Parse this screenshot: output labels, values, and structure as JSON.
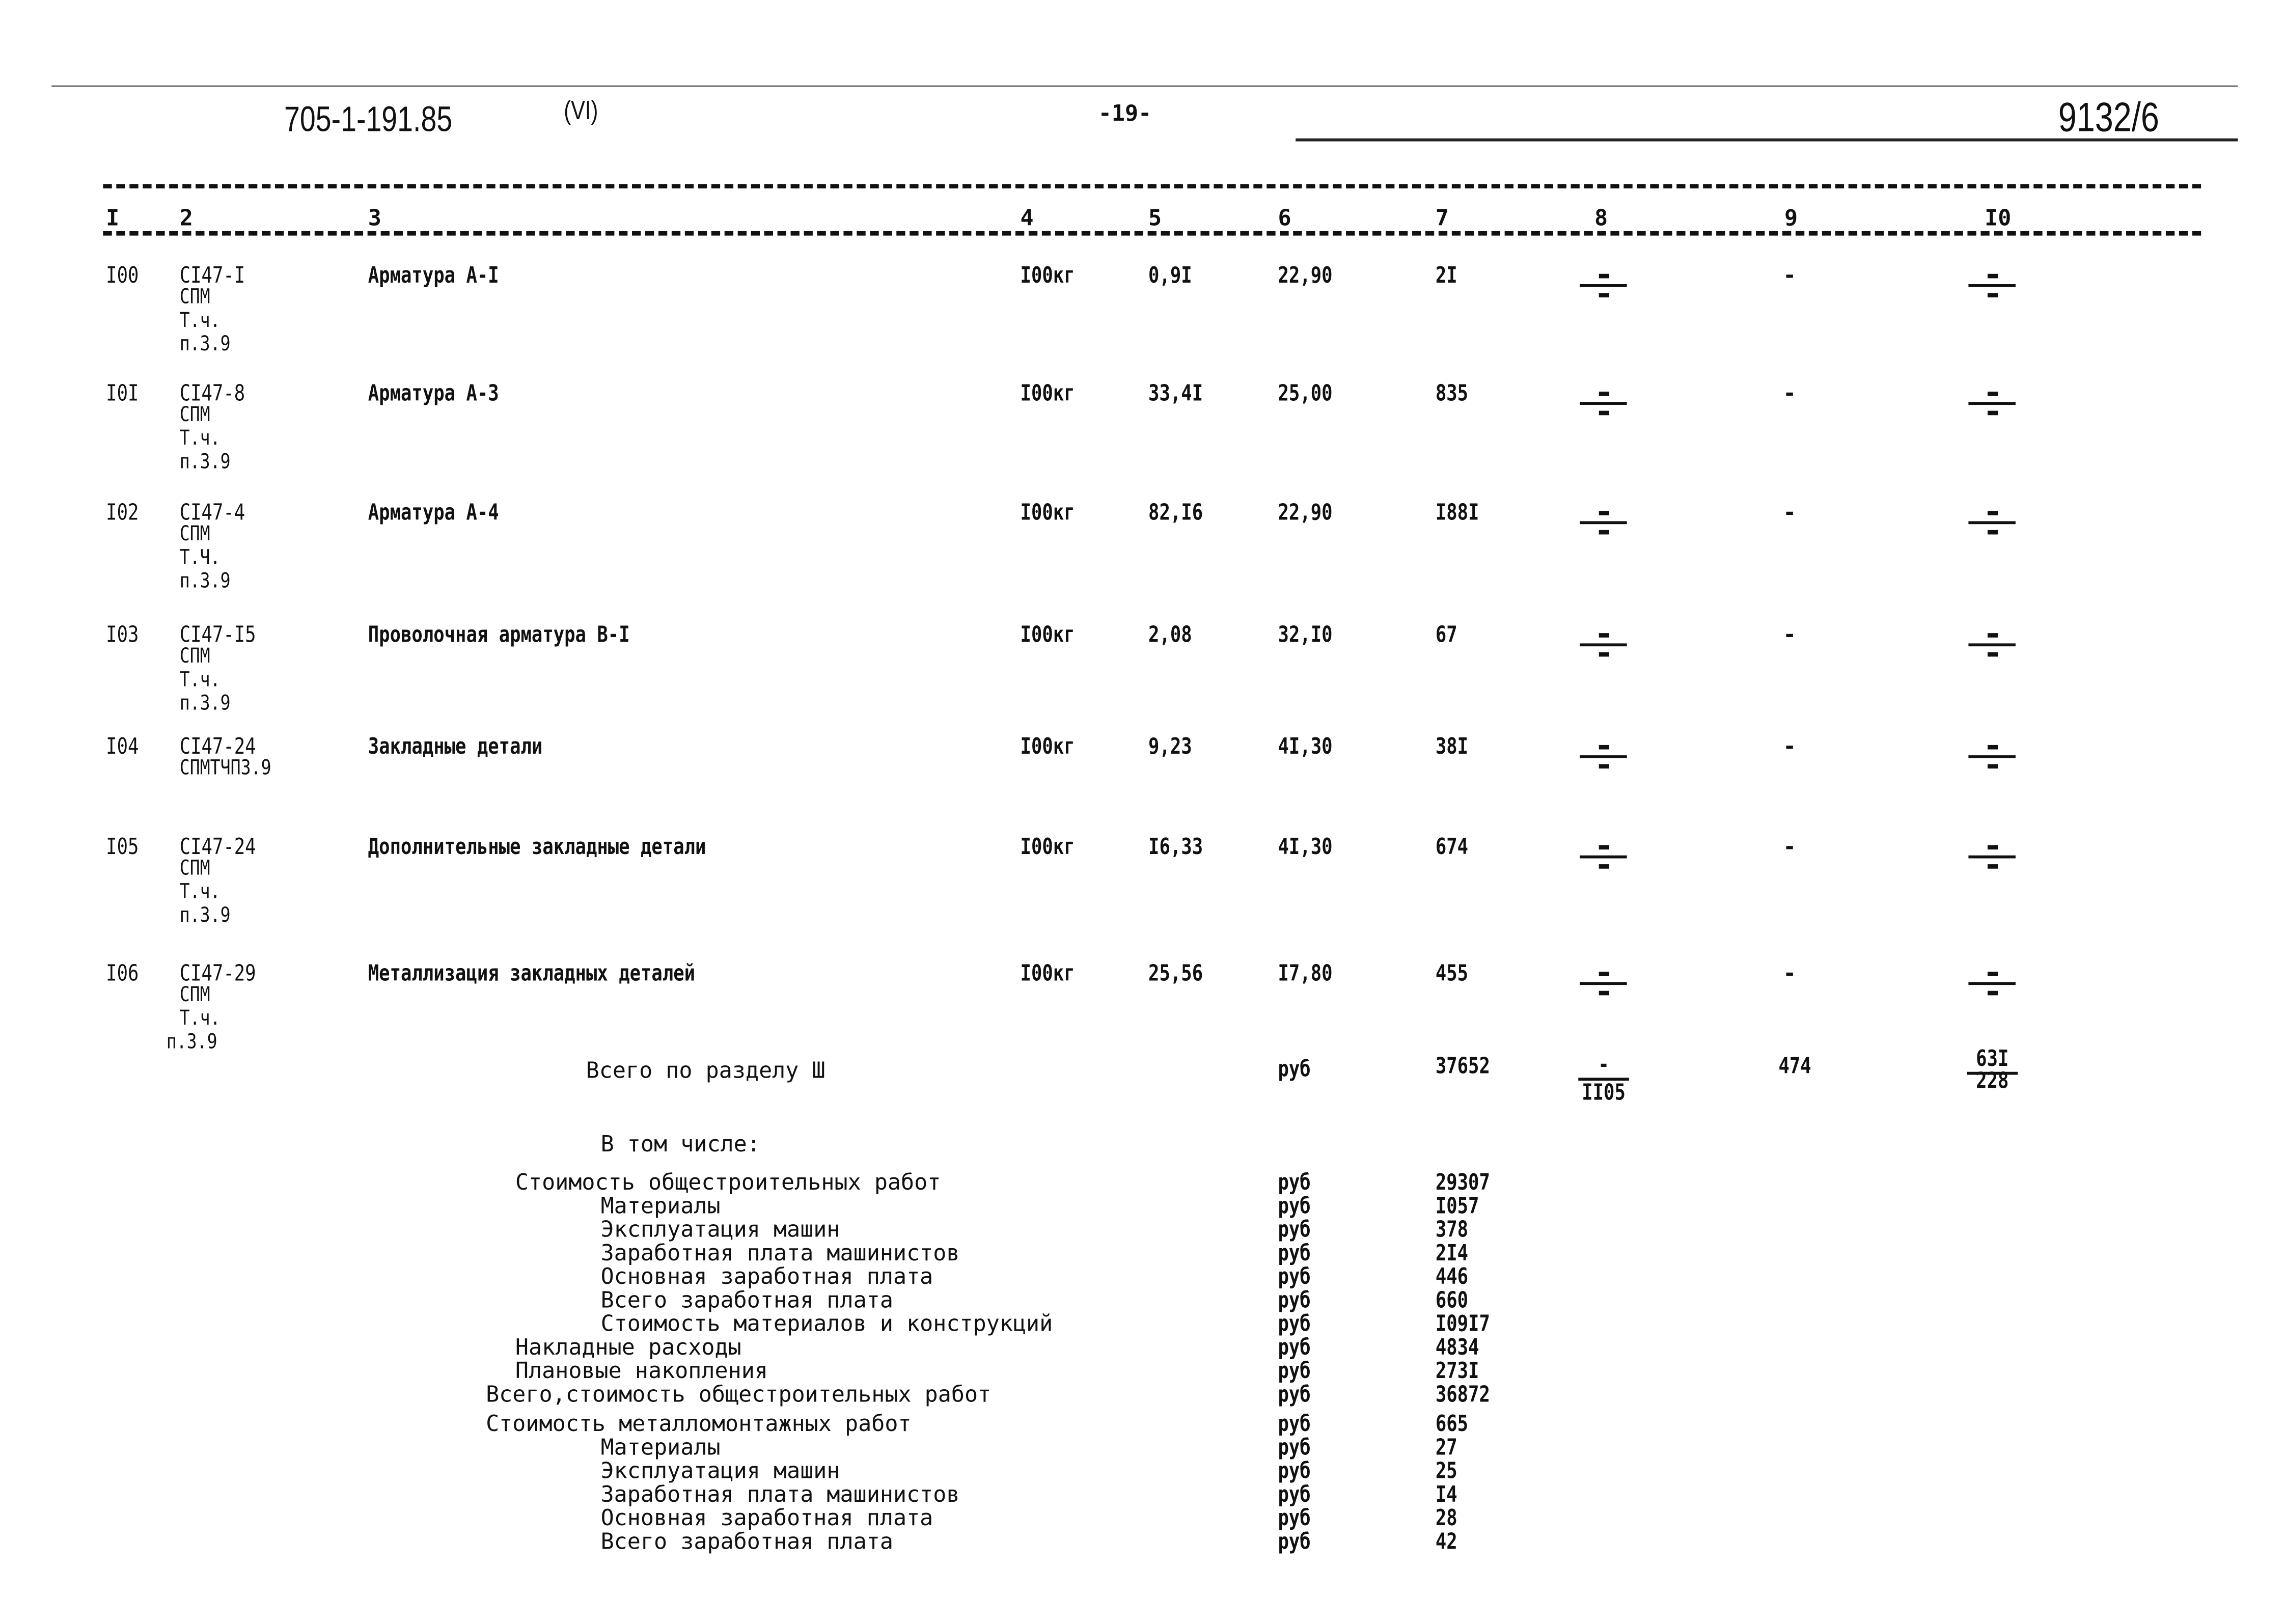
{
  "header": {
    "doc_code": "705-1-191.85",
    "variant": "(VI)",
    "page_number": "-19-",
    "sheet": "9132/6"
  },
  "columns": [
    "I",
    "2",
    "3",
    "4",
    "5",
    "6",
    "7",
    "8",
    "9",
    "I0"
  ],
  "rows": [
    {
      "num": "I00",
      "code": "CI47-I",
      "code_lines": [
        "СПМ",
        "Т.ч.",
        "п.3.9"
      ],
      "name": "Арматура А-I",
      "unit": "I00кг",
      "qty": "0,9I",
      "price": "22,90",
      "cost": "2I",
      "col8": "÷",
      "col9": "-",
      "col10": "÷"
    },
    {
      "num": "I0I",
      "code": "CI47-8",
      "code_lines": [
        "СПМ",
        "Т.ч.",
        "п.3.9"
      ],
      "name": "Арматура А-3",
      "unit": "I00кг",
      "qty": "33,4I",
      "price": "25,00",
      "cost": "835",
      "col8": "÷",
      "col9": "-",
      "col10": "÷"
    },
    {
      "num": "I02",
      "code": "CI47-4",
      "code_lines": [
        "СПМ",
        "Т.Ч.",
        "п.3.9"
      ],
      "name": "Арматура А-4",
      "unit": "I00кг",
      "qty": "82,I6",
      "price": "22,90",
      "cost": "I88I",
      "col8": "÷",
      "col9": "-",
      "col10": "÷"
    },
    {
      "num": "I03",
      "code": "CI47-I5",
      "code_lines": [
        "СПМ",
        "Т.ч.",
        "п.3.9"
      ],
      "name": "Проволочная арматура В-I",
      "unit": "I00кг",
      "qty": "2,08",
      "price": "32,I0",
      "cost": "67",
      "col8": "÷",
      "col9": "-",
      "col10": "÷"
    },
    {
      "num": "I04",
      "code": "CI47-24",
      "code_lines": [
        "СПМТЧП3.9"
      ],
      "name": "Закладные детали",
      "unit": "I00кг",
      "qty": "9,23",
      "price": "4I,30",
      "cost": "38I",
      "col8": "÷",
      "col9": "-",
      "col10": "÷"
    },
    {
      "num": "I05",
      "code": "CI47-24",
      "code_lines": [
        "СПМ",
        "Т.ч.",
        "п.3.9"
      ],
      "name": "Дополнительные закладные детали",
      "unit": "I00кг",
      "qty": "I6,33",
      "price": "4I,30",
      "cost": "674",
      "col8": "÷",
      "col9": "-",
      "col10": "÷"
    },
    {
      "num": "I06",
      "code": "CI47-29",
      "code_lines": [
        "СПМ",
        "Т.ч.",
        "п.3.9"
      ],
      "name": "Металлизация закладных деталей",
      "unit": "I00кг",
      "qty": "25,56",
      "price": "I7,80",
      "cost": "455",
      "col8": "÷",
      "col9": "-",
      "col10": "÷"
    }
  ],
  "total": {
    "label": "Всего по разделу Ш",
    "unit": "руб",
    "cost": "37652",
    "col8_top": "-",
    "col8_bottom": "II05",
    "col9": "474",
    "col10_top": "63I",
    "col10_bottom": "228"
  },
  "breakdown": {
    "title": "В том числе:",
    "lines": [
      {
        "label": "Стоимость общестроительных работ",
        "level": 1,
        "unit": "руб",
        "value": "29307"
      },
      {
        "label": "Материалы",
        "level": 2,
        "unit": "руб",
        "value": "I057"
      },
      {
        "label": "Эксплуатация машин",
        "level": 2,
        "unit": "руб",
        "value": "378"
      },
      {
        "label": "Заработная плата машинистов",
        "level": 2,
        "unit": "руб",
        "value": "2I4"
      },
      {
        "label": "Основная заработная плата",
        "level": 2,
        "unit": "руб",
        "value": "446"
      },
      {
        "label": "Всего заработная плата",
        "level": 2,
        "unit": "руб",
        "value": "660"
      },
      {
        "label": "Стоимость материалов и конструкций",
        "level": 2,
        "unit": "руб",
        "value": "I09I7"
      },
      {
        "label": "Накладные расходы",
        "level": 1,
        "unit": "руб",
        "value": "4834"
      },
      {
        "label": "Плановые накопления",
        "level": 1,
        "unit": "руб",
        "value": "273I"
      },
      {
        "label": "Всего,стоимость общестроительных работ",
        "level": 0,
        "unit": "руб",
        "value": "36872"
      },
      {
        "label": "Стоимость металломонтажных работ",
        "level": 0,
        "unit": "руб",
        "value": "665"
      },
      {
        "label": "Материалы",
        "level": 2,
        "unit": "руб",
        "value": "27"
      },
      {
        "label": "Эксплуатация машин",
        "level": 2,
        "unit": "руб",
        "value": "25"
      },
      {
        "label": "Заработная плата машинистов",
        "level": 2,
        "unit": "руб",
        "value": "I4"
      },
      {
        "label": "Основная заработная плата",
        "level": 2,
        "unit": "руб",
        "value": "28"
      },
      {
        "label": "Всего заработная плата",
        "level": 2,
        "unit": "руб",
        "value": "42"
      }
    ]
  }
}
